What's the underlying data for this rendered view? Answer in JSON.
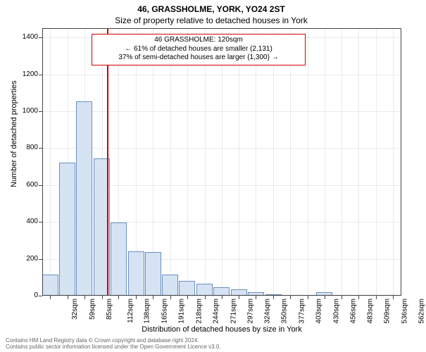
{
  "title_main": "46, GRASSHOLME, YORK, YO24 2ST",
  "title_sub": "Size of property relative to detached houses in York",
  "ylabel": "Number of detached properties",
  "xlabel": "Distribution of detached houses by size in York",
  "footer_line1": "Contains HM Land Registry data © Crown copyright and database right 2024.",
  "footer_line2": "Contains public sector information licensed under the Open Government Licence v3.0.",
  "annotation": {
    "line1": "46 GRASSHOLME: 120sqm",
    "line2": "← 61% of detached houses are smaller (2,131)",
    "line3": "37% of semi-detached houses are larger (1,300) →",
    "border_color": "#d00000",
    "bg_color": "#ffffff",
    "font_size": 10
  },
  "chart": {
    "type": "histogram",
    "background_color": "#ffffff",
    "axes_border_color": "#444444",
    "grid_color": "rgba(0,0,0,0.08)",
    "bar_fill": "#d6e3f3",
    "bar_stroke": "#6a8fbf",
    "marker_color": "#d00000",
    "marker_x_value": 120,
    "x_min": 20,
    "x_max": 575,
    "x_ticks": [
      32,
      59,
      85,
      112,
      138,
      165,
      191,
      218,
      244,
      271,
      297,
      324,
      350,
      377,
      403,
      430,
      456,
      483,
      509,
      536,
      562
    ],
    "x_tick_suffix": "sqm",
    "y_min": 0,
    "y_max": 1450,
    "y_ticks": [
      0,
      200,
      400,
      600,
      800,
      1000,
      1200,
      1400
    ],
    "bars": [
      {
        "x_center": 32,
        "count": 115
      },
      {
        "x_center": 59,
        "count": 720
      },
      {
        "x_center": 85,
        "count": 1055
      },
      {
        "x_center": 112,
        "count": 745
      },
      {
        "x_center": 138,
        "count": 395
      },
      {
        "x_center": 165,
        "count": 240
      },
      {
        "x_center": 191,
        "count": 235
      },
      {
        "x_center": 218,
        "count": 115
      },
      {
        "x_center": 244,
        "count": 80
      },
      {
        "x_center": 271,
        "count": 65
      },
      {
        "x_center": 297,
        "count": 45
      },
      {
        "x_center": 324,
        "count": 35
      },
      {
        "x_center": 350,
        "count": 18
      },
      {
        "x_center": 377,
        "count": 8
      },
      {
        "x_center": 403,
        "count": 0
      },
      {
        "x_center": 430,
        "count": 0
      },
      {
        "x_center": 456,
        "count": 18
      },
      {
        "x_center": 483,
        "count": 0
      },
      {
        "x_center": 509,
        "count": 0
      },
      {
        "x_center": 536,
        "count": 0
      },
      {
        "x_center": 562,
        "count": 0
      }
    ],
    "bar_width_data_units": 25,
    "title_fontsize": 12,
    "label_fontsize": 11,
    "tick_fontsize": 10,
    "footer_fontsize": 8
  }
}
